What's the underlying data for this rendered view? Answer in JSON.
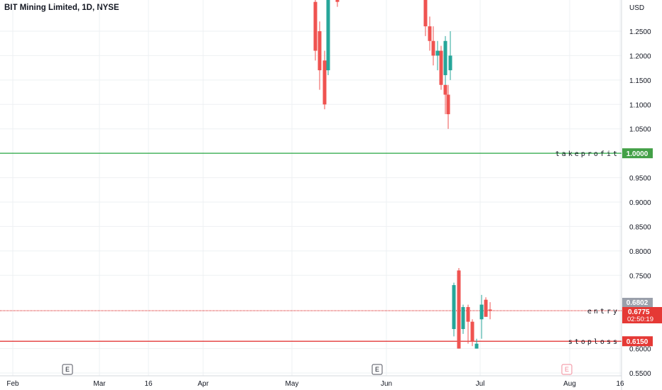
{
  "header": {
    "title": "BIT Mining Limited, 1D, NYSE"
  },
  "chart_data": {
    "type": "candlestick",
    "title": "BIT Mining Limited, 1D, NYSE",
    "y_unit": "USD",
    "ylim": [
      0.545,
      1.31
    ],
    "y_ticks": [
      1.25,
      1.2,
      1.15,
      1.1,
      1.05,
      0.95,
      0.9,
      0.85,
      0.8,
      0.75,
      0.6,
      0.55
    ],
    "y_tick_labels": [
      "1.2500",
      "1.2000",
      "1.1500",
      "1.1000",
      "1.0500",
      "0.9500",
      "0.9000",
      "0.8500",
      "0.8000",
      "0.7500",
      "0.6000",
      "0.5500"
    ],
    "x_ticks": [
      "Feb",
      "Mar",
      "16",
      "Apr",
      "May",
      "Jun",
      "Jul",
      "Aug",
      "16"
    ],
    "grid": true,
    "levels": [
      {
        "name": "takeprofit",
        "value": 1.0,
        "label": "1.0000",
        "color": "#26a640"
      },
      {
        "name": "entry",
        "value": 0.6775,
        "label": "0.6775",
        "color": "#e04848"
      },
      {
        "name": "stoploss",
        "value": 0.615,
        "label": "0.6150",
        "color": "#e02828"
      }
    ],
    "price_tags": [
      {
        "label": "0.6802",
        "value": 0.6802,
        "color": "#9aa0ab"
      },
      {
        "label": "0.6775",
        "value": 0.6775,
        "color": "#e53935",
        "sub": "02:50:19"
      },
      {
        "label": "0.6150",
        "value": 0.615,
        "color": "#e53935"
      }
    ],
    "earnings_markers": [
      {
        "label": "E",
        "at": "Feb",
        "style": "past"
      },
      {
        "label": "E",
        "at": "Jun",
        "style": "past"
      },
      {
        "label": "E",
        "at": "Aug",
        "style": "future"
      }
    ],
    "candles": [
      {
        "t": "May-8",
        "o": 1.31,
        "h": 1.33,
        "l": 1.19,
        "c": 1.21
      },
      {
        "t": "May-9",
        "o": 1.25,
        "h": 1.27,
        "l": 1.13,
        "c": 1.17
      },
      {
        "t": "May-10",
        "o": 1.19,
        "h": 1.21,
        "l": 1.09,
        "c": 1.1
      },
      {
        "t": "May-11",
        "o": 1.17,
        "h": 1.33,
        "l": 1.16,
        "c": 1.32
      },
      {
        "t": "May-12",
        "o": 1.32,
        "h": 1.33,
        "l": 1.3,
        "c": 1.31
      },
      {
        "t": "Jun-20",
        "o": 1.33,
        "h": 1.34,
        "l": 1.24,
        "c": 1.26
      },
      {
        "t": "Jun-21",
        "o": 1.26,
        "h": 1.28,
        "l": 1.21,
        "c": 1.23
      },
      {
        "t": "Jun-22",
        "o": 1.23,
        "h": 1.26,
        "l": 1.18,
        "c": 1.2
      },
      {
        "t": "Jun-23",
        "o": 1.2,
        "h": 1.23,
        "l": 1.17,
        "c": 1.21
      },
      {
        "t": "Jun-24",
        "o": 1.21,
        "h": 1.22,
        "l": 1.13,
        "c": 1.14
      },
      {
        "t": "Jun-25",
        "o": 1.14,
        "h": 1.15,
        "l": 1.08,
        "c": 1.12
      },
      {
        "t": "Jun-26",
        "o": 1.12,
        "h": 1.14,
        "l": 1.05,
        "c": 1.08
      },
      {
        "t": "Jun-27",
        "o": 1.16,
        "h": 1.24,
        "l": 1.14,
        "c": 1.23
      },
      {
        "t": "Jun-28",
        "o": 1.17,
        "h": 1.25,
        "l": 1.15,
        "c": 1.2
      },
      {
        "t": "Jun-29",
        "o": 0.64,
        "h": 0.735,
        "l": 0.625,
        "c": 0.73
      },
      {
        "t": "Jun-30",
        "o": 0.76,
        "h": 0.765,
        "l": 0.6,
        "c": 0.6
      },
      {
        "t": "Jul-1",
        "o": 0.64,
        "h": 0.69,
        "l": 0.63,
        "c": 0.685
      },
      {
        "t": "Jul-2",
        "o": 0.685,
        "h": 0.69,
        "l": 0.61,
        "c": 0.655
      },
      {
        "t": "Jul-3",
        "o": 0.655,
        "h": 0.66,
        "l": 0.605,
        "c": 0.615
      },
      {
        "t": "Jul-4",
        "o": 0.6,
        "h": 0.62,
        "l": 0.6,
        "c": 0.61
      },
      {
        "t": "Jul-5",
        "o": 0.66,
        "h": 0.71,
        "l": 0.62,
        "c": 0.69
      },
      {
        "t": "Jul-6",
        "o": 0.7,
        "h": 0.705,
        "l": 0.67,
        "c": 0.665
      },
      {
        "t": "Jul-7",
        "o": 0.68,
        "h": 0.695,
        "l": 0.66,
        "c": 0.6775
      }
    ]
  }
}
